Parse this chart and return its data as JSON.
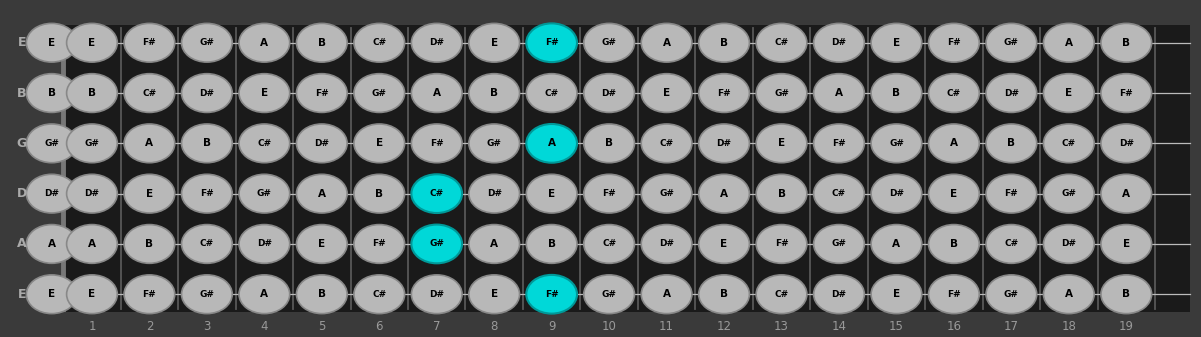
{
  "bg_color": "#3a3a3a",
  "fretboard_color": "#1a1a1a",
  "fret_color": "#555555",
  "string_color": "#bbbbbb",
  "note_fill": "#b8b8b8",
  "note_edge": "#888888",
  "note_text": "#000000",
  "cyan_color": "#00d8d8",
  "open_ring_edge": "#888888",
  "label_color": "#999999",
  "scale_notes": [
    "A",
    "B",
    "C#",
    "D#",
    "E",
    "F#",
    "G#"
  ],
  "string_names": [
    "E",
    "B",
    "G",
    "D",
    "A",
    "E"
  ],
  "open_notes": [
    "E",
    "B",
    "G#",
    "D#",
    "A",
    "E"
  ],
  "notes_per_string": {
    "0": [
      "E",
      "F#",
      "G#",
      "A",
      "B",
      "C#",
      "D#",
      "E",
      "F#",
      "G#",
      "A",
      "B",
      "C#",
      "D#",
      "E",
      "F#",
      "G#",
      "A",
      "B"
    ],
    "1": [
      "B",
      "C#",
      "D#",
      "E",
      "F#",
      "G#",
      "A",
      "B",
      "C#",
      "D#",
      "E",
      "F#",
      "G#",
      "A",
      "B",
      "C#",
      "D#",
      "E",
      "F#"
    ],
    "2": [
      "G#",
      "A",
      "B",
      "C#",
      "D#",
      "E",
      "F#",
      "G#",
      "A",
      "B",
      "C#",
      "D#",
      "E",
      "F#",
      "G#",
      "A",
      "B",
      "C#",
      "D#"
    ],
    "3": [
      "D#",
      "E",
      "F#",
      "G#",
      "A",
      "B",
      "C#",
      "D#",
      "E",
      "F#",
      "G#",
      "A",
      "B",
      "C#",
      "D#",
      "E",
      "F#",
      "G#",
      "A"
    ],
    "4": [
      "A",
      "B",
      "C#",
      "D#",
      "E",
      "F#",
      "G#",
      "A",
      "B",
      "C#",
      "D#",
      "E",
      "F#",
      "G#",
      "A",
      "B",
      "C#",
      "D#",
      "E"
    ],
    "5": [
      "E",
      "F#",
      "G#",
      "A",
      "B",
      "C#",
      "D#",
      "E",
      "F#",
      "G#",
      "A",
      "B",
      "C#",
      "D#",
      "E",
      "F#",
      "G#",
      "A",
      "B"
    ]
  },
  "cyan_positions": [
    {
      "str": 0,
      "fret": 9
    },
    {
      "str": 2,
      "fret": 9
    },
    {
      "str": 3,
      "fret": 7
    },
    {
      "str": 4,
      "fret": 7
    },
    {
      "str": 5,
      "fret": 9
    }
  ],
  "fret_count": 19,
  "open_ring_positions": [
    {
      "str": 2,
      "fret": 3
    },
    {
      "str": 2,
      "fret": 5
    },
    {
      "str": 2,
      "fret": 8
    },
    {
      "str": 2,
      "fret": 10
    },
    {
      "str": 2,
      "fret": 12
    },
    {
      "str": 2,
      "fret": 15
    },
    {
      "str": 2,
      "fret": 17
    },
    {
      "str": 3,
      "fret": 3
    },
    {
      "str": 3,
      "fret": 5
    },
    {
      "str": 3,
      "fret": 8
    },
    {
      "str": 3,
      "fret": 10
    },
    {
      "str": 3,
      "fret": 12
    },
    {
      "str": 3,
      "fret": 15
    },
    {
      "str": 3,
      "fret": 17
    },
    {
      "str": 4,
      "fret": 3
    },
    {
      "str": 4,
      "fret": 10
    },
    {
      "str": 4,
      "fret": 12
    },
    {
      "str": 4,
      "fret": 17
    },
    {
      "str": 0,
      "fret": 3
    },
    {
      "str": 0,
      "fret": 5
    },
    {
      "str": 0,
      "fret": 8
    },
    {
      "str": 0,
      "fret": 10
    },
    {
      "str": 0,
      "fret": 12
    },
    {
      "str": 0,
      "fret": 15
    },
    {
      "str": 0,
      "fret": 17
    },
    {
      "str": 1,
      "fret": 3
    },
    {
      "str": 1,
      "fret": 5
    },
    {
      "str": 1,
      "fret": 8
    },
    {
      "str": 1,
      "fret": 10
    },
    {
      "str": 1,
      "fret": 12
    },
    {
      "str": 1,
      "fret": 15
    },
    {
      "str": 1,
      "fret": 17
    },
    {
      "str": 5,
      "fret": 3
    },
    {
      "str": 5,
      "fret": 5
    },
    {
      "str": 5,
      "fret": 8
    },
    {
      "str": 5,
      "fret": 10
    },
    {
      "str": 5,
      "fret": 12
    },
    {
      "str": 5,
      "fret": 15
    },
    {
      "str": 5,
      "fret": 17
    }
  ]
}
